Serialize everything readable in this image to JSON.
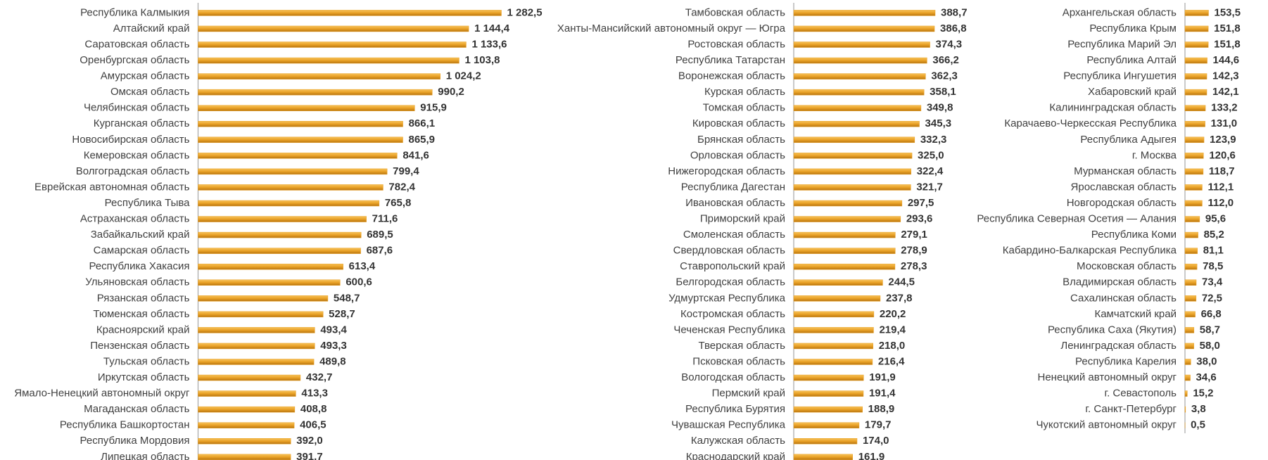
{
  "chart_data": [
    {
      "type": "bar",
      "color": "#e9a126",
      "categories": [
        "Республика Калмыкия",
        "Алтайский край",
        "Саратовская область",
        "Оренбургская область",
        "Амурская область",
        "Омская область",
        "Челябинская область",
        "Курганская область",
        "Новосибирская область",
        "Кемеровская область",
        "Волгоградская область",
        "Еврейская автономная область",
        "Республика Тыва",
        "Астраханская область",
        "Забайкальский край",
        "Самарская область",
        "Республика Хакасия",
        "Ульяновская область",
        "Рязанская область",
        "Тюменская область",
        "Красноярский край",
        "Пензенская область",
        "Тульская область",
        "Иркутская область",
        "Ямало-Ненецкий автономный округ",
        "Магаданская область",
        "Республика Башкортостан",
        "Республика Мордовия",
        "Липецкая область"
      ],
      "values": [
        1282.5,
        1144.4,
        1133.6,
        1103.8,
        1024.2,
        990.2,
        915.9,
        866.1,
        865.9,
        841.6,
        799.4,
        782.4,
        765.8,
        711.6,
        689.5,
        687.6,
        613.4,
        600.6,
        548.7,
        528.7,
        493.4,
        493.3,
        489.8,
        432.7,
        413.3,
        408.8,
        406.5,
        392.0,
        391.7
      ],
      "value_labels": [
        "1 282,5",
        "1 144,4",
        "1 133,6",
        "1 103,8",
        "1 024,2",
        "990,2",
        "915,9",
        "866,1",
        "865,9",
        "841,6",
        "799,4",
        "782,4",
        "765,8",
        "711,6",
        "689,5",
        "687,6",
        "613,4",
        "600,6",
        "548,7",
        "528,7",
        "493,4",
        "493,3",
        "489,8",
        "432,7",
        "413,3",
        "408,8",
        "406,5",
        "392,0",
        "391,7"
      ]
    },
    {
      "type": "bar",
      "color": "#e9a126",
      "categories": [
        "Тамбовская область",
        "Ханты-Мансийский автономный округ — Югра",
        "Ростовская область",
        "Республика Татарстан",
        "Воронежская область",
        "Курская область",
        "Томская область",
        "Кировская область",
        "Брянская область",
        "Орловская область",
        "Нижегородская область",
        "Республика Дагестан",
        "Ивановская область",
        "Приморский край",
        "Смоленская область",
        "Свердловская область",
        "Ставропольский край",
        "Белгородская область",
        "Удмуртская Республика",
        "Костромская область",
        "Чеченская Республика",
        "Тверская область",
        "Псковская область",
        "Вологодская область",
        "Пермский край",
        "Республика Бурятия",
        "Чувашская Республика",
        "Калужская область",
        "Краснодарский край"
      ],
      "values": [
        388.7,
        386.8,
        374.3,
        366.2,
        362.3,
        358.1,
        349.8,
        345.3,
        332.3,
        325.0,
        322.4,
        321.7,
        297.5,
        293.6,
        279.1,
        278.9,
        278.3,
        244.5,
        237.8,
        220.2,
        219.4,
        218.0,
        216.4,
        191.9,
        191.4,
        188.9,
        179.7,
        174.0,
        161.9
      ],
      "value_labels": [
        "388,7",
        "386,8",
        "374,3",
        "366,2",
        "362,3",
        "358,1",
        "349,8",
        "345,3",
        "332,3",
        "325,0",
        "322,4",
        "321,7",
        "297,5",
        "293,6",
        "279,1",
        "278,9",
        "278,3",
        "244,5",
        "237,8",
        "220,2",
        "219,4",
        "218,0",
        "216,4",
        "191,9",
        "191,4",
        "188,9",
        "179,7",
        "174,0",
        "161,9"
      ]
    },
    {
      "type": "bar",
      "color": "#e9a126",
      "categories": [
        "Архангельская область",
        "Республика Крым",
        "Республика Марий Эл",
        "Республика Алтай",
        "Республика Ингушетия",
        "Хабаровский край",
        "Калининградская область",
        "Карачаево-Черкесская Республика",
        "Республика Адыгея",
        "г. Москва",
        "Мурманская область",
        "Ярославская область",
        "Новгородская область",
        "Республика Северная Осетия — Алания",
        "Республика Коми",
        "Кабардино-Балкарская Республика",
        "Московская область",
        "Владимирская область",
        "Сахалинская область",
        "Камчатский край",
        "Республика Саха (Якутия)",
        "Ленинградская область",
        "Республика Карелия",
        "Ненецкий автономный округ",
        "г. Севастополь",
        "г. Санкт-Петербург",
        "Чукотский автономный округ"
      ],
      "values": [
        153.5,
        151.8,
        151.8,
        144.6,
        142.3,
        142.1,
        133.2,
        131.0,
        123.9,
        120.6,
        118.7,
        112.1,
        112.0,
        95.6,
        85.2,
        81.1,
        78.5,
        73.4,
        72.5,
        66.8,
        58.7,
        58.0,
        38.0,
        34.6,
        15.2,
        3.8,
        0.5
      ],
      "value_labels": [
        "153,5",
        "151,8",
        "151,8",
        "144,6",
        "142,3",
        "142,1",
        "133,2",
        "131,0",
        "123,9",
        "120,6",
        "118,7",
        "112,1",
        "112,0",
        "95,6",
        "85,2",
        "81,1",
        "78,5",
        "73,4",
        "72,5",
        "66,8",
        "58,7",
        "58,0",
        "38,0",
        "34,6",
        "15,2",
        "3,8",
        "0,5"
      ]
    }
  ]
}
